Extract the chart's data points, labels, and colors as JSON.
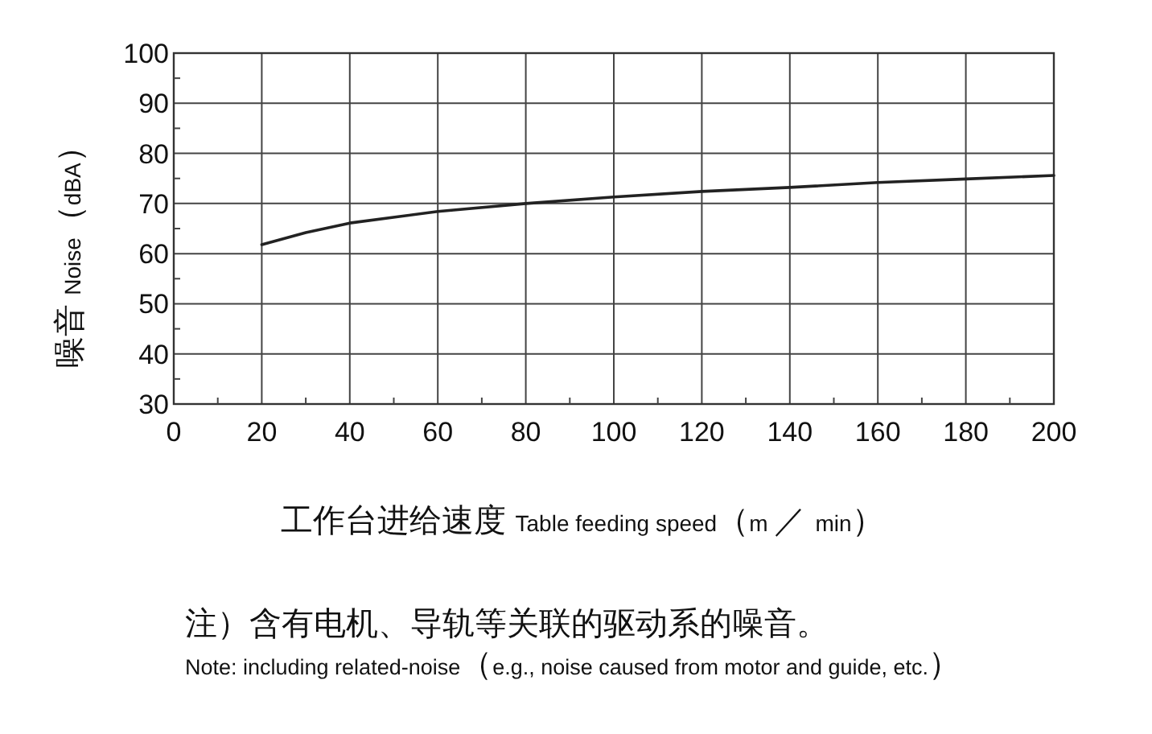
{
  "chart_data": {
    "type": "line",
    "ylabel": "噪音 Noise（dBA）",
    "xlabel": "工作台进给速度 Table feeding speed（m ／ min）",
    "annotations": [
      "注）含有电机、导轨等关联的驱动系的噪音。",
      "Note: including related-noise（e.g., noise caused from motor and guide, etc.）"
    ],
    "x": [
      20,
      30,
      40,
      60,
      80,
      100,
      120,
      140,
      160,
      180,
      200
    ],
    "values": [
      61.8,
      64.2,
      66.1,
      68.4,
      70.0,
      71.3,
      72.4,
      73.2,
      74.2,
      74.9,
      75.6
    ],
    "color": "#222222",
    "xlim": [
      0,
      200
    ],
    "ylim": [
      30,
      100
    ],
    "xticks": [
      0,
      20,
      40,
      60,
      80,
      100,
      120,
      140,
      160,
      180,
      200
    ],
    "yticks": [
      30,
      40,
      50,
      60,
      70,
      80,
      90,
      100
    ],
    "grid": true
  }
}
